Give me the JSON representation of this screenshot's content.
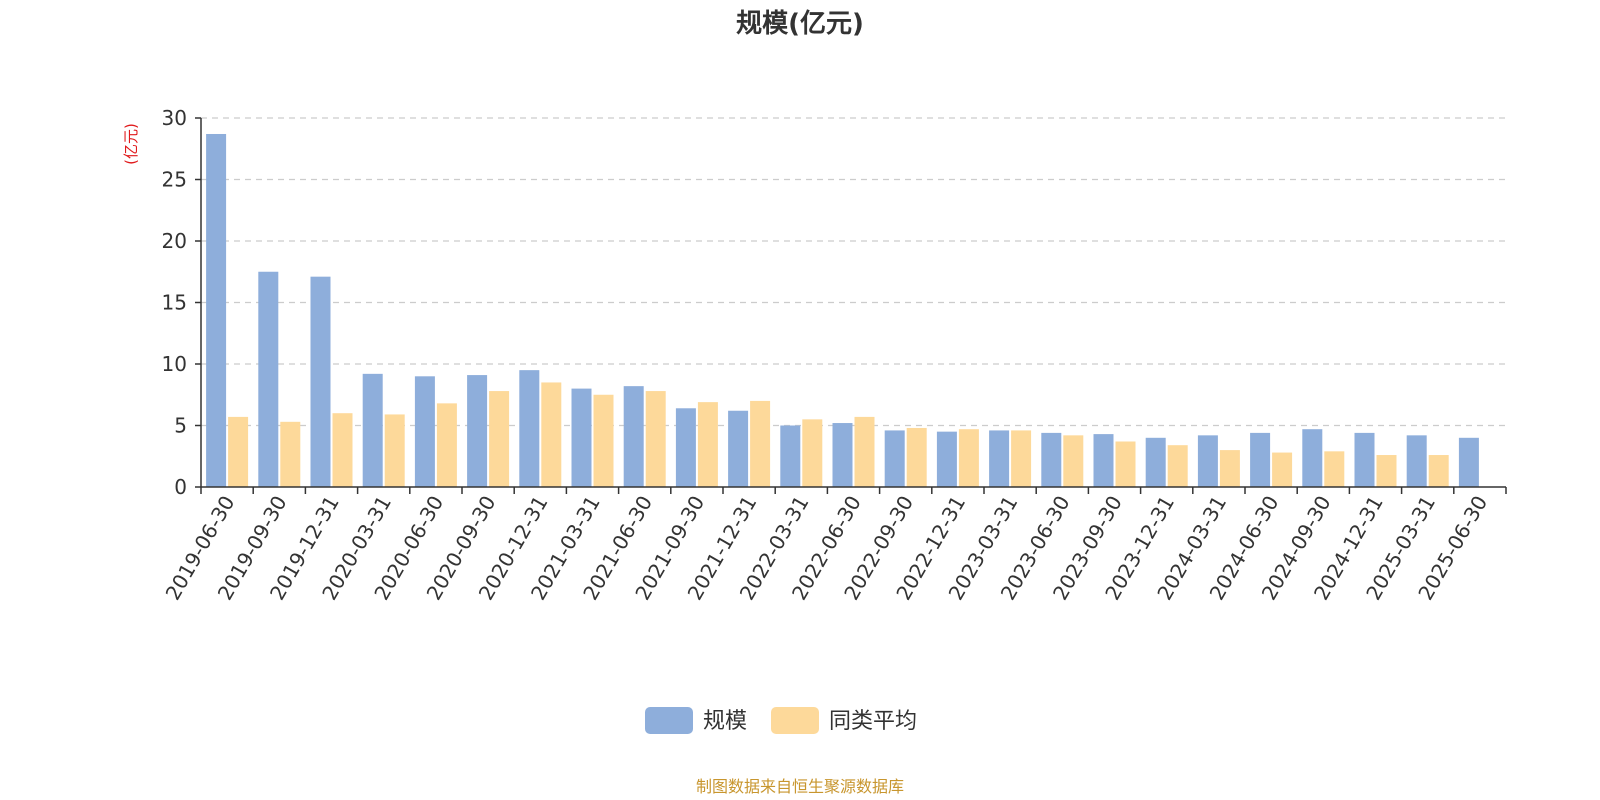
{
  "chart_data": {
    "type": "bar",
    "title": "规模(亿元)",
    "ylabel": "(亿元)",
    "xlabel": "",
    "ylim": [
      0,
      30
    ],
    "yticks": [
      0,
      5,
      10,
      15,
      20,
      25,
      30
    ],
    "grid": true,
    "legend_position": "bottom-center",
    "categories": [
      "2019-06-30",
      "2019-09-30",
      "2019-12-31",
      "2020-03-31",
      "2020-06-30",
      "2020-09-30",
      "2020-12-31",
      "2021-03-31",
      "2021-06-30",
      "2021-09-30",
      "2021-12-31",
      "2022-03-31",
      "2022-06-30",
      "2022-09-30",
      "2022-12-31",
      "2023-03-31",
      "2023-06-30",
      "2023-09-30",
      "2023-12-31",
      "2024-03-31",
      "2024-06-30",
      "2024-09-30",
      "2024-12-31",
      "2025-03-31",
      "2025-06-30"
    ],
    "series": [
      {
        "name": "规模",
        "color": "#8eaedb",
        "values": [
          28.7,
          17.5,
          17.1,
          9.2,
          9.0,
          9.1,
          9.5,
          8.0,
          8.2,
          6.4,
          6.2,
          5.0,
          5.2,
          4.6,
          4.5,
          4.6,
          4.4,
          4.3,
          4.0,
          4.2,
          4.4,
          4.7,
          4.4,
          4.2,
          4.0
        ]
      },
      {
        "name": "同类平均",
        "color": "#fdd99a",
        "values": [
          5.7,
          5.3,
          6.0,
          5.9,
          6.8,
          7.8,
          8.5,
          7.5,
          7.8,
          6.9,
          7.0,
          5.5,
          5.7,
          4.8,
          4.7,
          4.6,
          4.2,
          3.7,
          3.4,
          3.0,
          2.8,
          2.9,
          2.6,
          2.6,
          null
        ]
      }
    ]
  },
  "footer": {
    "source": "制图数据来自恒生聚源数据库"
  }
}
